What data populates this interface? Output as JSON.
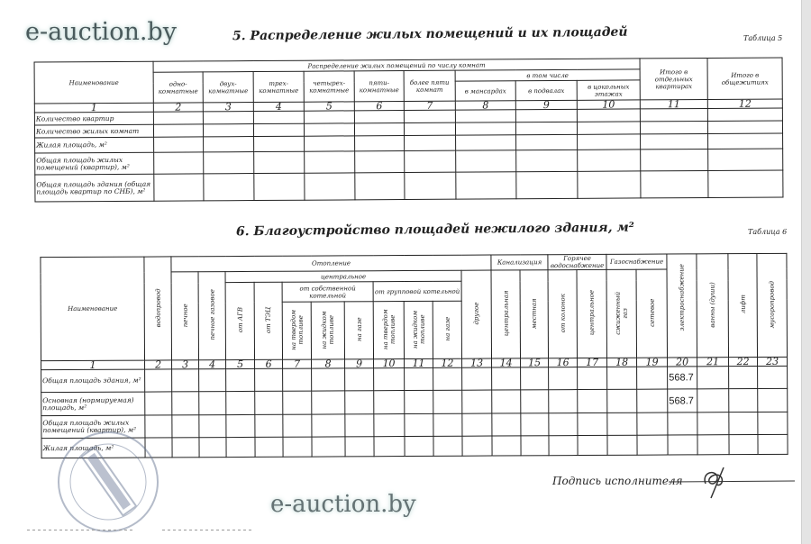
{
  "watermark": "e-auction.by",
  "table5": {
    "title": "5. Распределение жилых помещений и их площадей",
    "table_no": "Таблица 5",
    "headers": {
      "name": "Наименование",
      "distribution": "Распределение жилых помещений по числу комнат",
      "one": "одно-комнатные",
      "two": "двух-комнатные",
      "three": "трех-комнатные",
      "four": "четырех-комнатные",
      "five": "пяти-комнатные",
      "more": "более пяти комнат",
      "including": "в том числе",
      "attic": "в мансардах",
      "basement": "в подвалах",
      "ground": "в цокольных этажах",
      "total_apts": "Итого в отдельных квартирах",
      "total_dorms": "Итого в общежитиях"
    },
    "col_numbers": [
      "1",
      "2",
      "3",
      "4",
      "5",
      "6",
      "7",
      "8",
      "9",
      "10",
      "11",
      "12"
    ],
    "rows": [
      {
        "label": "Количество квартир",
        "values": [
          "",
          "",
          "",
          "",
          "",
          "",
          "",
          "",
          "",
          "",
          ""
        ]
      },
      {
        "label": "Количество жилых комнат",
        "values": [
          "",
          "",
          "",
          "",
          "",
          "",
          "",
          "",
          "",
          "",
          ""
        ]
      },
      {
        "label": "Жилая площадь, м²",
        "values": [
          "",
          "",
          "",
          "",
          "",
          "",
          "",
          "",
          "",
          "",
          ""
        ]
      },
      {
        "label": "Общая площадь жилых помещений (квартир), м²",
        "values": [
          "",
          "",
          "",
          "",
          "",
          "",
          "",
          "",
          "",
          "",
          ""
        ]
      },
      {
        "label": "Общая площадь здания (общая площадь квартир по СНБ), м²",
        "values": [
          "",
          "",
          "",
          "",
          "",
          "",
          "",
          "",
          "",
          "",
          ""
        ]
      }
    ]
  },
  "table6": {
    "title": "6. Благоустройство площадей нежилого здания, м²",
    "table_no": "Таблица 6",
    "headers": {
      "name": "Наименование",
      "water": "водопровод",
      "heating": "Отопление",
      "stove": "печное",
      "stove_gas": "печное газовое",
      "central": "центральное",
      "agv": "от АГВ",
      "tec": "от ТЭЦ",
      "own_boiler": "от собственной котельной",
      "group_boiler": "от групповой котельной",
      "solid": "на твердом топливе",
      "liquid": "на жидком топливе",
      "gas": "на газе",
      "other": "другое",
      "sewerage": "Канализация",
      "sew_central": "центральная",
      "sew_local": "местная",
      "hot_water": "Горячее водоснабжение",
      "hw_from": "от колонок",
      "hw_central": "центральное",
      "gas_supply": "Газоснабжение",
      "liquefied": "сжиженный газ",
      "network": "сетевое",
      "electric": "электроснабжение",
      "baths": "ванны (души)",
      "lift": "лифт",
      "garbage": "мусоропровод"
    },
    "col_numbers": [
      "1",
      "2",
      "3",
      "4",
      "5",
      "6",
      "7",
      "8",
      "9",
      "10",
      "11",
      "12",
      "13",
      "14",
      "15",
      "16",
      "17",
      "18",
      "19",
      "20",
      "21",
      "22",
      "23"
    ],
    "rows": [
      {
        "label": "Общая площадь здания, м²",
        "values": [
          "",
          "",
          "",
          "",
          "",
          "",
          "",
          "",
          "",
          "",
          "",
          "",
          "",
          "",
          "",
          "",
          "",
          "",
          "568.7",
          "",
          "",
          ""
        ]
      },
      {
        "label": "Основная (нормируемая) площадь, м²",
        "values": [
          "",
          "",
          "",
          "",
          "",
          "",
          "",
          "",
          "",
          "",
          "",
          "",
          "",
          "",
          "",
          "",
          "",
          "",
          "568.7",
          "",
          "",
          ""
        ]
      },
      {
        "label": "Общая площадь жилых помещений (квартир), м²",
        "values": [
          "",
          "",
          "",
          "",
          "",
          "",
          "",
          "",
          "",
          "",
          "",
          "",
          "",
          "",
          "",
          "",
          "",
          "",
          "",
          "",
          "",
          ""
        ]
      },
      {
        "label": "Жилая площадь, м²",
        "values": [
          "",
          "",
          "",
          "",
          "",
          "",
          "",
          "",
          "",
          "",
          "",
          "",
          "",
          "",
          "",
          "",
          "",
          "",
          "",
          "",
          "",
          ""
        ]
      }
    ]
  },
  "signature": {
    "label": "Подпись исполнителя"
  }
}
